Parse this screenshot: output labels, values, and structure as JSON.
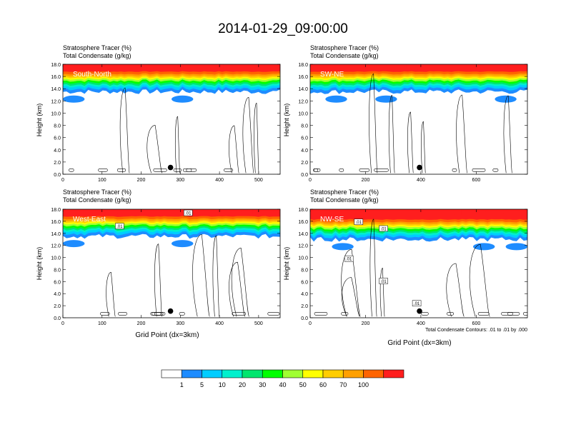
{
  "figure": {
    "title": "2014-01-29_09:00:00",
    "footnote": "Total Condensate Contours: .01 to .01 by .000",
    "colorbar": {
      "levels": [
        "1",
        "5",
        "10",
        "20",
        "30",
        "40",
        "50",
        "60",
        "70",
        "100"
      ],
      "colors": [
        "#ffffff",
        "#1e8cff",
        "#00cdff",
        "#00f0cd",
        "#00e66e",
        "#00ff00",
        "#a0ff32",
        "#ffff00",
        "#ffcd00",
        "#ffa000",
        "#ff6400",
        "#ff1e1e"
      ]
    }
  },
  "chart_data": [
    {
      "type": "heatmap",
      "title_line1": "Stratosphere Tracer   (%)",
      "title_line2": "Total Condensate   (g/kg)",
      "label": "South-North",
      "ylabel": "Height (km)",
      "xlabel": "",
      "xlim": [
        0,
        555
      ],
      "ylim": [
        0,
        18
      ],
      "xticks": [
        0,
        100,
        200,
        300,
        400,
        500
      ],
      "yticks": [
        "0.0",
        "2.0",
        "4.0",
        "6.0",
        "8.0",
        "10.0",
        "12.0",
        "14.0",
        "16.0",
        "18.0"
      ],
      "tracer_top_km": 18,
      "tracer_bottom_km_typical": 13.5,
      "marker": {
        "x": 275,
        "y": 1.1
      },
      "contour_labels": []
    },
    {
      "type": "heatmap",
      "title_line1": "Stratosphere Tracer   (%)",
      "title_line2": "Total Condensate   (g/kg)",
      "label": "SW-NE",
      "ylabel": "Height (km)",
      "xlabel": "",
      "xlim": [
        0,
        785
      ],
      "ylim": [
        0,
        18
      ],
      "xticks": [
        0,
        200,
        400,
        600
      ],
      "yticks": [
        "0.0",
        "2.0",
        "4.0",
        "6.0",
        "8.0",
        "10.0",
        "12.0",
        "14.0",
        "16.0",
        "18.0"
      ],
      "tracer_top_km": 18,
      "tracer_bottom_km_typical": 13.5,
      "marker": {
        "x": 395,
        "y": 1.1
      },
      "contour_labels": []
    },
    {
      "type": "heatmap",
      "title_line1": "Stratosphere Tracer   (%)",
      "title_line2": "Total Condensate   (g/kg)",
      "label": "West-East",
      "ylabel": "Height (km)",
      "xlabel": "Grid Point (dx=3km)",
      "xlim": [
        0,
        555
      ],
      "ylim": [
        0,
        18
      ],
      "xticks": [
        0,
        100,
        200,
        300,
        400,
        500
      ],
      "yticks": [
        "0.0",
        "2.0",
        "4.0",
        "6.0",
        "8.0",
        "10.0",
        "12.0",
        "14.0",
        "16.0",
        "18.0"
      ],
      "tracer_top_km": 18,
      "tracer_bottom_km_typical": 13.5,
      "marker": {
        "x": 275,
        "y": 1.1
      },
      "contour_labels": [
        {
          "text": ".01",
          "x": 145,
          "y": 15.2
        },
        {
          "text": ".01",
          "x": 320,
          "y": 17.4
        }
      ]
    },
    {
      "type": "heatmap",
      "title_line1": "Stratosphere Tracer   (%)",
      "title_line2": "Total Condensate   (g/kg)",
      "label": "NW-SE",
      "ylabel": "Height (km)",
      "xlabel": "Grid Point (dx=3km)",
      "xlim": [
        0,
        785
      ],
      "ylim": [
        0,
        18
      ],
      "xticks": [
        0,
        200,
        400,
        600
      ],
      "yticks": [
        "0.0",
        "2.0",
        "4.0",
        "6.0",
        "8.0",
        "10.0",
        "12.0",
        "14.0",
        "16.0",
        "18.0"
      ],
      "tracer_top_km": 18,
      "tracer_bottom_km_typical": 13.0,
      "marker": {
        "x": 395,
        "y": 1.1
      },
      "contour_labels": [
        {
          "text": ".01",
          "x": 175,
          "y": 15.9
        },
        {
          "text": ".01",
          "x": 265,
          "y": 14.8
        },
        {
          "text": ".01",
          "x": 140,
          "y": 9.8
        },
        {
          "text": ".01",
          "x": 265,
          "y": 6.1
        },
        {
          "text": ".01",
          "x": 385,
          "y": 2.4
        }
      ]
    }
  ]
}
